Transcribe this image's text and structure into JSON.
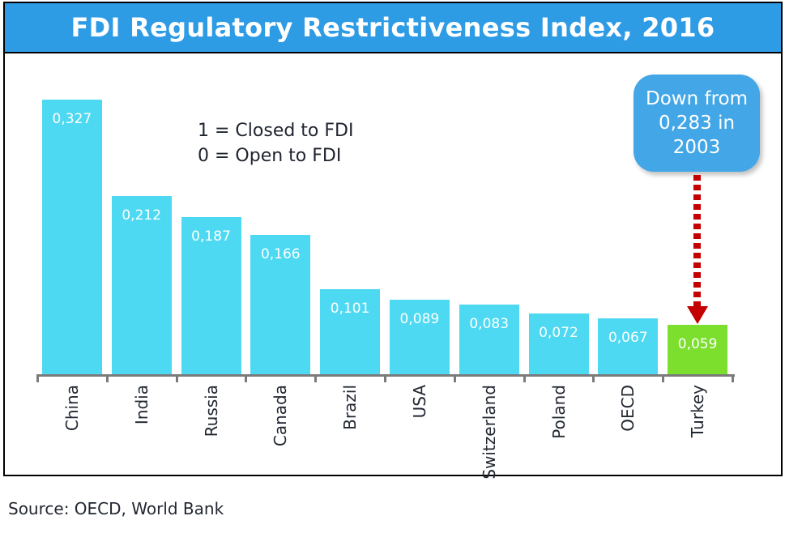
{
  "title": "FDI Regulatory Restrictiveness Index, 2016",
  "legend": {
    "line1": "1 = Closed to FDI",
    "line2": "0 = Open to FDI"
  },
  "callout": {
    "lines": [
      "Down from",
      "0,283 in",
      "2003"
    ]
  },
  "source": {
    "text": "Source: OECD, World Bank"
  },
  "colors": {
    "title_bar": "#2E9BE5",
    "bar": "#4ED9F2",
    "highlight_bar": "#7CDF2E",
    "callout": "#43A6E6",
    "arrow": "#C40000",
    "axis": "#7B7B7B",
    "text_dark": "#222731",
    "text_light": "#FFFFFF"
  },
  "chart_data": {
    "type": "bar",
    "title": "FDI Regulatory Restrictiveness Index, 2016",
    "categories": [
      "China",
      "India",
      "Russia",
      "Canada",
      "Brazil",
      "USA",
      "Switzerland",
      "Poland",
      "OECD",
      "Turkey"
    ],
    "values": [
      0.327,
      0.212,
      0.187,
      0.166,
      0.101,
      0.089,
      0.083,
      0.072,
      0.067,
      0.059
    ],
    "value_labels": [
      "0,327",
      "0,212",
      "0,187",
      "0,166",
      "0,101",
      "0,089",
      "0,083",
      "0,072",
      "0,067",
      "0,059"
    ],
    "highlight_category": "Turkey",
    "annotation": "Down from 0,283 in 2003 (dashed arrow pointing to Turkey bar)",
    "note": "1 = Closed to FDI; 0 = Open to FDI",
    "xlabel": "",
    "ylabel": "",
    "ylim": [
      0,
      1
    ],
    "grid": false,
    "legend_position": "none",
    "source": "Source: OECD, World Bank"
  }
}
